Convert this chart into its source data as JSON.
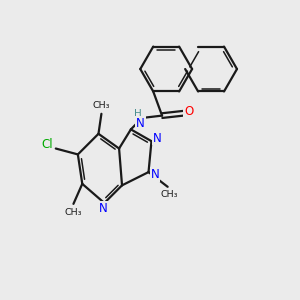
{
  "background_color": "#ebebeb",
  "bond_color": "#1a1a1a",
  "N_color": "#0000ff",
  "O_color": "#ff0000",
  "Cl_color": "#00aa00",
  "H_color": "#4a8f8f",
  "figsize": [
    3.0,
    3.0
  ],
  "dpi": 100,
  "xlim": [
    0,
    10
  ],
  "ylim": [
    0,
    10
  ]
}
